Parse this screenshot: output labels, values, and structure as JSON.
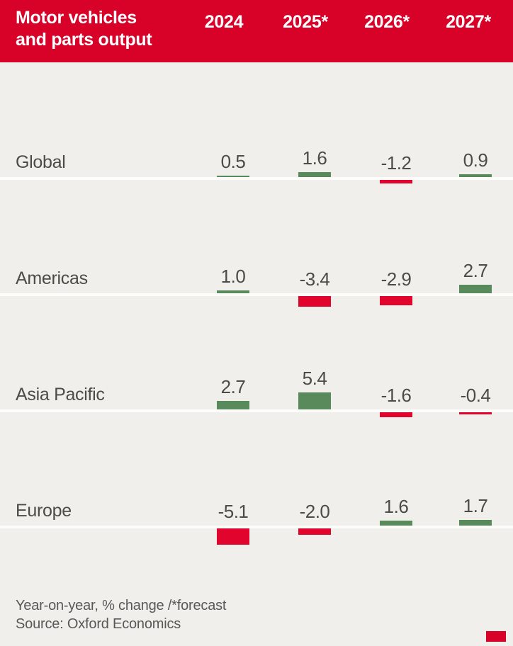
{
  "header": {
    "title_lines": [
      "Motor vehicles",
      "and parts output"
    ],
    "columns": [
      "2024",
      "2025*",
      "2026*",
      "2027*"
    ]
  },
  "chart_data": {
    "type": "bar",
    "title": "Motor vehicles and parts output",
    "columns": [
      "2024",
      "2025*",
      "2026*",
      "2027*"
    ],
    "rows": [
      {
        "label": "Global",
        "values": [
          0.5,
          1.6,
          -1.2,
          0.9
        ],
        "display": [
          "0.5",
          "1.6",
          "-1.2",
          "0.9"
        ]
      },
      {
        "label": "Americas",
        "values": [
          1.0,
          -3.4,
          -2.9,
          2.7
        ],
        "display": [
          "1.0",
          "-3.4",
          "-2.9",
          "2.7"
        ]
      },
      {
        "label": "Asia Pacific",
        "values": [
          2.7,
          5.4,
          -1.6,
          -0.4
        ],
        "display": [
          "2.7",
          "5.4",
          "-1.6",
          "-0.4"
        ]
      },
      {
        "label": "Europe",
        "values": [
          -5.1,
          -2.0,
          1.6,
          1.7
        ],
        "display": [
          "-5.1",
          "-2.0",
          "1.6",
          "1.7"
        ]
      }
    ],
    "note": "Year-on-year, % change /*forecast",
    "legend_position": "none",
    "grid": false
  },
  "footer": {
    "note": "Year-on-year, % change /*forecast",
    "source": "Source: Oxford Economics"
  },
  "colors": {
    "header_background": "#d80228",
    "header_text": "#ffffff",
    "body_background": "#f1efec",
    "positive_bar": "#588a5c",
    "negative_bar": "#e1042d",
    "text": "#4d4b48",
    "footer_text": "#5a5856",
    "baseline": "#fcfcfa",
    "brand_mark": "#d80228"
  }
}
